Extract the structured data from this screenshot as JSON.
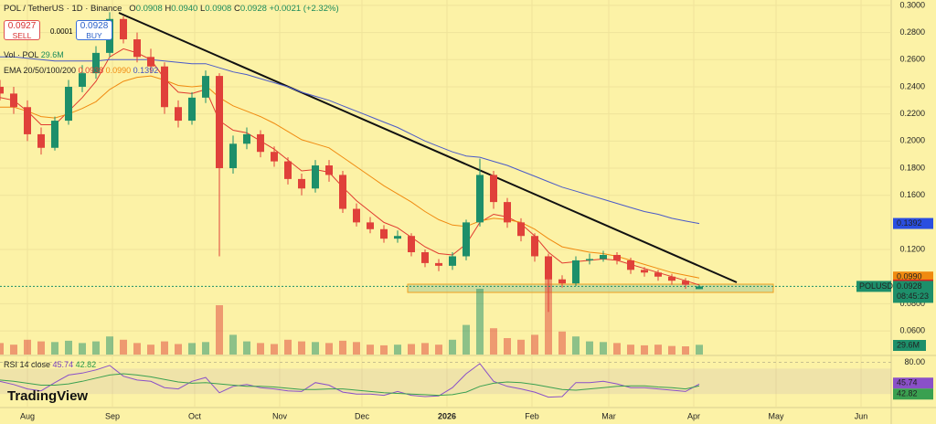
{
  "header": {
    "symbol": "POL / TetherUS · 1D · Binance",
    "o_label": "O",
    "open": "0.0908",
    "h_label": "H",
    "high": "0.0940",
    "l_label": "L",
    "low": "0.0908",
    "c_label": "C",
    "close": "0.0928",
    "change": "+0.0021 (+2.32%)",
    "sell_price": "0.0927",
    "sell": "SELL",
    "spread": "0.0001",
    "buy_price": "0.0928",
    "buy": "BUY",
    "vol_label": "Vol · POL",
    "vol_value": "29.6M",
    "ema_label": "EMA 20/50/100/200",
    "ema20": "0.0938",
    "ema50": "0.0990",
    "ema200": "0.1392",
    "rsi_label": "RSI 14 close",
    "rsi_value": "45.74",
    "rsi_ma": "42.82",
    "ticker": "POLUSDT",
    "countdown": "08:45:23",
    "logo": "TradingView"
  },
  "chart_data": {
    "type": "candlestick",
    "up_color": "#1d8f6a",
    "down_color": "#e0413a",
    "x": [
      -10,
      -5,
      0,
      5,
      10,
      15,
      20,
      25,
      30,
      35,
      40,
      45,
      50,
      55,
      60,
      65,
      70,
      75,
      80,
      85,
      90,
      95,
      100,
      105,
      110,
      115,
      120,
      125,
      130,
      135,
      140,
      145,
      150,
      155,
      160,
      165,
      170,
      175,
      180,
      185,
      190,
      195,
      200,
      205,
      210,
      215,
      220,
      225,
      230,
      235,
      240,
      245
    ],
    "open": [
      0.24,
      0.235,
      0.225,
      0.205,
      0.195,
      0.215,
      0.24,
      0.25,
      0.265,
      0.29,
      0.275,
      0.262,
      0.255,
      0.225,
      0.215,
      0.232,
      0.248,
      0.18,
      0.198,
      0.205,
      0.192,
      0.185,
      0.172,
      0.165,
      0.182,
      0.175,
      0.15,
      0.14,
      0.135,
      0.128,
      0.13,
      0.118,
      0.11,
      0.108,
      0.115,
      0.14,
      0.175,
      0.155,
      0.14,
      0.13,
      0.115,
      0.098,
      0.095,
      0.112,
      0.113,
      0.116,
      0.112,
      0.105,
      0.103,
      0.1,
      0.097,
      0.0908
    ],
    "high": [
      0.245,
      0.24,
      0.23,
      0.21,
      0.218,
      0.245,
      0.256,
      0.27,
      0.295,
      0.292,
      0.28,
      0.268,
      0.258,
      0.23,
      0.236,
      0.252,
      0.25,
      0.204,
      0.21,
      0.208,
      0.196,
      0.188,
      0.176,
      0.186,
      0.186,
      0.178,
      0.154,
      0.144,
      0.138,
      0.134,
      0.132,
      0.12,
      0.113,
      0.118,
      0.142,
      0.187,
      0.178,
      0.158,
      0.143,
      0.132,
      0.117,
      0.101,
      0.115,
      0.117,
      0.119,
      0.118,
      0.114,
      0.107,
      0.105,
      0.102,
      0.099,
      0.094
    ],
    "low": [
      0.23,
      0.22,
      0.2,
      0.19,
      0.193,
      0.212,
      0.236,
      0.246,
      0.262,
      0.272,
      0.258,
      0.25,
      0.22,
      0.21,
      0.212,
      0.228,
      0.115,
      0.176,
      0.194,
      0.188,
      0.181,
      0.168,
      0.16,
      0.162,
      0.17,
      0.147,
      0.137,
      0.132,
      0.125,
      0.125,
      0.115,
      0.107,
      0.104,
      0.105,
      0.112,
      0.137,
      0.15,
      0.136,
      0.126,
      0.111,
      0.074,
      0.092,
      0.093,
      0.109,
      0.111,
      0.109,
      0.102,
      0.1,
      0.097,
      0.094,
      0.091,
      0.0908
    ],
    "close": [
      0.235,
      0.225,
      0.205,
      0.195,
      0.215,
      0.24,
      0.25,
      0.265,
      0.29,
      0.275,
      0.262,
      0.255,
      0.225,
      0.215,
      0.232,
      0.248,
      0.18,
      0.198,
      0.205,
      0.192,
      0.185,
      0.172,
      0.165,
      0.182,
      0.175,
      0.15,
      0.14,
      0.135,
      0.128,
      0.13,
      0.118,
      0.11,
      0.108,
      0.115,
      0.14,
      0.175,
      0.155,
      0.14,
      0.13,
      0.115,
      0.098,
      0.095,
      0.112,
      0.113,
      0.116,
      0.112,
      0.105,
      0.103,
      0.1,
      0.097,
      0.094,
      0.0928
    ],
    "volume": [
      35,
      30,
      45,
      40,
      38,
      42,
      35,
      40,
      55,
      45,
      35,
      30,
      40,
      32,
      35,
      38,
      150,
      60,
      40,
      35,
      32,
      45,
      40,
      38,
      35,
      42,
      38,
      30,
      28,
      30,
      32,
      35,
      30,
      45,
      90,
      200,
      80,
      50,
      45,
      60,
      250,
      70,
      55,
      40,
      38,
      35,
      30,
      28,
      30,
      26,
      25,
      29.6
    ],
    "series": [
      {
        "color": "#e03a30",
        "values": [
          0.232,
          0.23,
          0.222,
          0.212,
          0.212,
          0.222,
          0.232,
          0.244,
          0.262,
          0.268,
          0.265,
          0.26,
          0.246,
          0.236,
          0.235,
          0.238,
          0.215,
          0.208,
          0.206,
          0.2,
          0.194,
          0.186,
          0.178,
          0.179,
          0.177,
          0.166,
          0.156,
          0.148,
          0.14,
          0.136,
          0.129,
          0.122,
          0.117,
          0.116,
          0.124,
          0.14,
          0.146,
          0.144,
          0.139,
          0.13,
          0.118,
          0.11,
          0.111,
          0.112,
          0.113,
          0.112,
          0.109,
          0.106,
          0.103,
          0.1,
          0.097,
          0.0938
        ]
      },
      {
        "color": "#f08a10",
        "values": [
          0.225,
          0.225,
          0.222,
          0.218,
          0.217,
          0.22,
          0.224,
          0.229,
          0.238,
          0.244,
          0.247,
          0.248,
          0.245,
          0.241,
          0.24,
          0.241,
          0.232,
          0.226,
          0.222,
          0.218,
          0.213,
          0.207,
          0.201,
          0.198,
          0.195,
          0.188,
          0.181,
          0.174,
          0.167,
          0.161,
          0.155,
          0.148,
          0.142,
          0.138,
          0.137,
          0.141,
          0.143,
          0.142,
          0.14,
          0.135,
          0.128,
          0.122,
          0.12,
          0.118,
          0.117,
          0.115,
          0.112,
          0.109,
          0.106,
          0.103,
          0.101,
          0.099
        ]
      },
      {
        "color": "#4a5ac8",
        "values": [
          0.262,
          0.262,
          0.261,
          0.26,
          0.259,
          0.259,
          0.259,
          0.259,
          0.26,
          0.26,
          0.26,
          0.26,
          0.259,
          0.258,
          0.257,
          0.257,
          0.254,
          0.251,
          0.249,
          0.246,
          0.243,
          0.24,
          0.236,
          0.233,
          0.23,
          0.226,
          0.222,
          0.218,
          0.214,
          0.21,
          0.205,
          0.2,
          0.196,
          0.192,
          0.189,
          0.188,
          0.185,
          0.182,
          0.178,
          0.174,
          0.17,
          0.166,
          0.163,
          0.16,
          0.157,
          0.154,
          0.151,
          0.148,
          0.146,
          0.143,
          0.141,
          0.1392
        ]
      }
    ],
    "xlim": [
      -10,
      315
    ],
    "xticks": [
      {
        "value": 0,
        "label": "Aug"
      },
      {
        "value": 31,
        "label": "Sep"
      },
      {
        "value": 61,
        "label": "Oct"
      },
      {
        "value": 92,
        "label": "Nov"
      },
      {
        "value": 122,
        "label": "Dec"
      },
      {
        "value": 153,
        "label": "2026"
      },
      {
        "value": 184,
        "label": "Feb"
      },
      {
        "value": 212,
        "label": "Mar"
      },
      {
        "value": 243,
        "label": "Apr"
      },
      {
        "value": 273,
        "label": "May"
      },
      {
        "value": 304,
        "label": "Jun"
      }
    ],
    "ylim": [
      0.054,
      0.304
    ],
    "yticks": [
      {
        "value": 0.3,
        "label": "0.3000"
      },
      {
        "value": 0.28,
        "label": "0.2800"
      },
      {
        "value": 0.26,
        "label": "0.2600"
      },
      {
        "value": 0.24,
        "label": "0.2400"
      },
      {
        "value": 0.22,
        "label": "0.2200"
      },
      {
        "value": 0.2,
        "label": "0.2000"
      },
      {
        "value": 0.18,
        "label": "0.1800"
      },
      {
        "value": 0.16,
        "label": "0.1600"
      },
      {
        "value": 0.12,
        "label": "0.1200"
      },
      {
        "value": 0.08,
        "label": "0.0800"
      },
      {
        "value": 0.06,
        "label": "0.0600"
      }
    ],
    "rsi": {
      "color": "#8a50c8",
      "ma_color": "#3aa050",
      "values": [
        50,
        45,
        38,
        35,
        48,
        60,
        63,
        68,
        75,
        58,
        52,
        50,
        40,
        38,
        50,
        56,
        32,
        42,
        45,
        40,
        38,
        35,
        34,
        48,
        44,
        33,
        30,
        30,
        28,
        34,
        28,
        26,
        27,
        40,
        62,
        78,
        50,
        42,
        38,
        33,
        25,
        26,
        48,
        48,
        50,
        46,
        40,
        40,
        38,
        36,
        34,
        45.74
      ],
      "ma": [
        52,
        50,
        47,
        44,
        44,
        46,
        50,
        55,
        60,
        62,
        60,
        57,
        53,
        49,
        47,
        48,
        46,
        44,
        42,
        42,
        41,
        39,
        37,
        37,
        38,
        38,
        36,
        34,
        32,
        31,
        30,
        29,
        28,
        29,
        33,
        42,
        47,
        49,
        48,
        45,
        41,
        37,
        36,
        38,
        40,
        42,
        43,
        43,
        41,
        40,
        38,
        42.82
      ],
      "ylim": [
        0,
        85
      ],
      "yticks": [
        {
          "value": 80,
          "label": "80.00"
        }
      ]
    }
  }
}
